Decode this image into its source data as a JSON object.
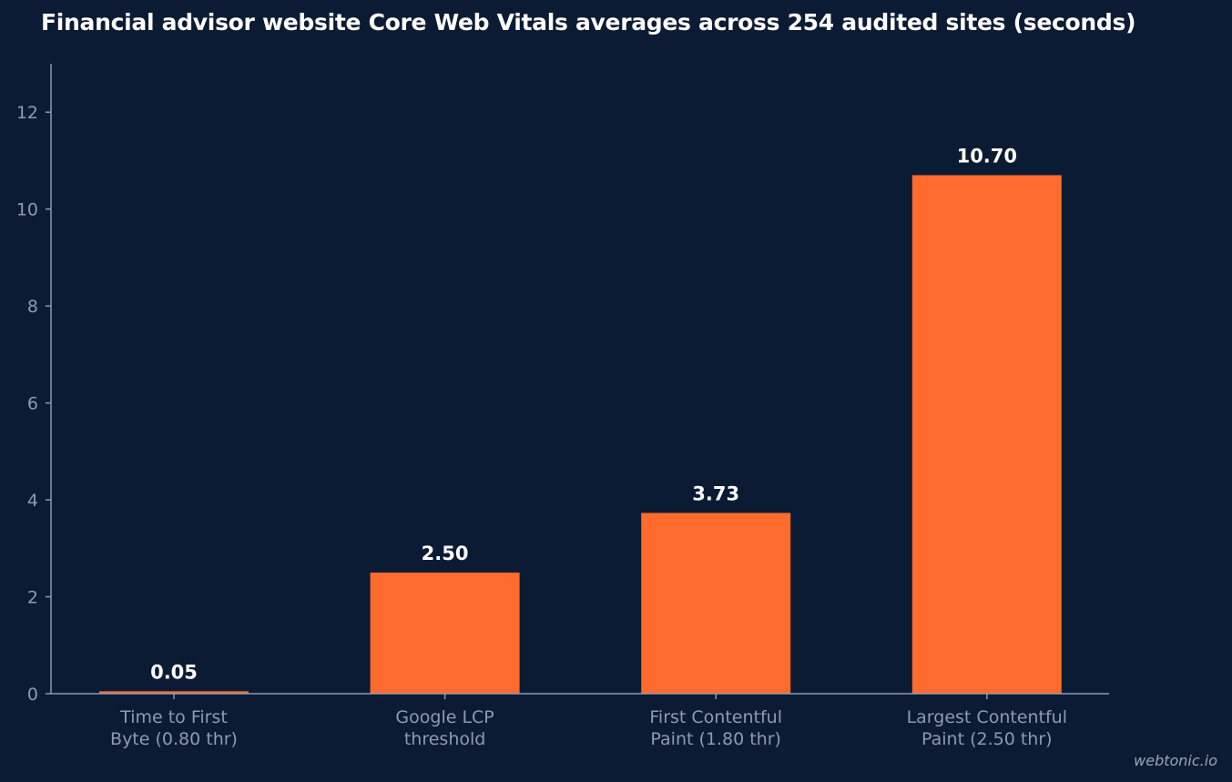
{
  "chart_data": {
    "type": "bar",
    "title": "Financial advisor website Core Web Vitals averages across 254 audited sites (seconds)",
    "categories": [
      [
        "Time to First",
        "Byte (0.80 thr)"
      ],
      [
        "Google LCP",
        "threshold"
      ],
      [
        "First Contentful",
        "Paint (1.80 thr)"
      ],
      [
        "Largest Contentful",
        "Paint (2.50 thr)"
      ]
    ],
    "values": [
      0.05,
      2.5,
      3.73,
      10.7
    ],
    "value_labels": [
      "0.05",
      "2.50",
      "3.73",
      "10.70"
    ],
    "ylim": [
      0,
      13
    ],
    "yticks": [
      0,
      2,
      4,
      6,
      8,
      10,
      12
    ],
    "xlabel": "",
    "ylabel": "",
    "grid": false,
    "colors": {
      "bar": "#ff6b2c",
      "background": "#0b1b33",
      "axis": "#8d9bb0"
    }
  },
  "watermark": "webtonic.io"
}
